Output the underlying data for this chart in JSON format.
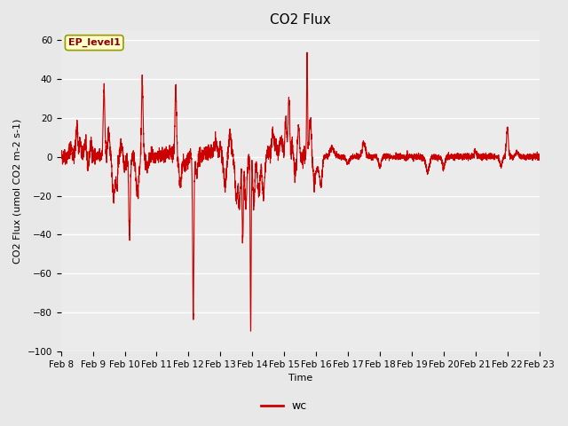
{
  "title": "CO2 Flux",
  "xlabel": "Time",
  "ylabel": "CO2 Flux (umol CO2 m-2 s-1)",
  "ylim": [
    -100,
    65
  ],
  "yticks": [
    -100,
    -80,
    -60,
    -40,
    -20,
    0,
    20,
    40,
    60
  ],
  "line_color": "#cc0000",
  "line_width": 0.8,
  "legend_label": "wc",
  "legend_line_color": "#cc0000",
  "fig_bg_color": "#e8e8e8",
  "plot_bg_color": "#ebebeb",
  "ep_label": "EP_level1",
  "ep_label_bg": "#ffffcc",
  "ep_label_border": "#999900",
  "x_tick_labels": [
    "Feb 8",
    "Feb 9",
    "Feb 10",
    "Feb 11",
    "Feb 12",
    "Feb 13",
    "Feb 14",
    "Feb 15",
    "Feb 16",
    "Feb 17",
    "Feb 18",
    "Feb 19",
    "Feb 20",
    "Feb 21",
    "Feb 22",
    "Feb 23"
  ],
  "title_fontsize": 11,
  "axis_label_fontsize": 8,
  "tick_fontsize": 7.5
}
